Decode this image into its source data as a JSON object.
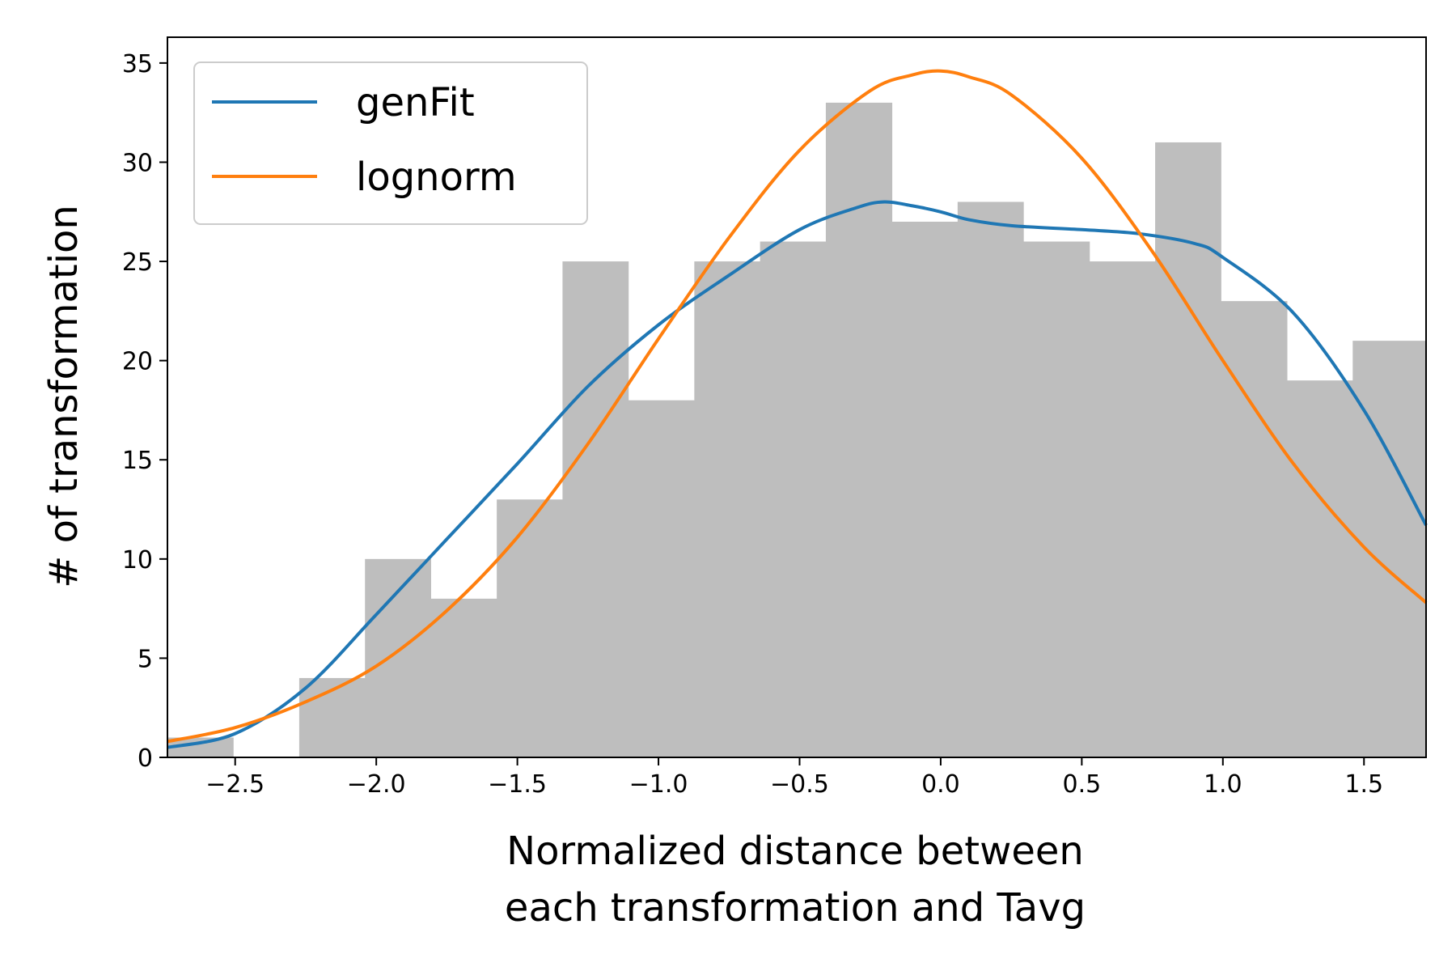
{
  "chart_data": {
    "type": "bar",
    "subtype": "histogram-with-fitted-curves",
    "xlabel": [
      "Normalized distance between",
      "each transformation and Tavg"
    ],
    "ylabel": "# of transformation",
    "xlim": [
      -2.74,
      1.72
    ],
    "ylim": [
      0,
      36.3
    ],
    "xticks": [
      -2.5,
      -2.0,
      -1.5,
      -1.0,
      -0.5,
      0.0,
      0.5,
      1.0,
      1.5
    ],
    "xtick_labels": [
      "−2.5",
      "−2.0",
      "−1.5",
      "−1.0",
      "−0.5",
      "0.0",
      "0.5",
      "1.0",
      "1.5"
    ],
    "yticks": [
      0,
      5,
      10,
      15,
      20,
      25,
      30,
      35
    ],
    "ytick_labels": [
      "0",
      "5",
      "10",
      "15",
      "20",
      "25",
      "30",
      "35"
    ],
    "legend_position": "top-left",
    "histogram": {
      "color": "#bebebe",
      "bin_edges": [
        -2.74,
        -2.507,
        -2.273,
        -2.04,
        -1.807,
        -1.573,
        -1.34,
        -1.107,
        -0.873,
        -0.64,
        -0.407,
        -0.173,
        0.06,
        0.293,
        0.527,
        0.76,
        0.993,
        1.227,
        1.46,
        1.72
      ],
      "counts": [
        1,
        0,
        4,
        10,
        8,
        13,
        25,
        18,
        25,
        26,
        33,
        27,
        28,
        26,
        25,
        31,
        23,
        19,
        21
      ]
    },
    "series": [
      {
        "name": "genFit",
        "color": "#1f77b4",
        "x": [
          -2.74,
          -2.5,
          -2.25,
          -2.0,
          -1.75,
          -1.5,
          -1.25,
          -1.0,
          -0.75,
          -0.5,
          -0.3,
          -0.2,
          -0.1,
          0.0,
          0.1,
          0.25,
          0.5,
          0.7,
          0.9,
          1.0,
          1.25,
          1.5,
          1.72
        ],
        "y": [
          0.5,
          1.2,
          3.5,
          7.2,
          11.0,
          14.8,
          18.7,
          21.8,
          24.3,
          26.6,
          27.7,
          28.0,
          27.8,
          27.5,
          27.1,
          26.8,
          26.6,
          26.4,
          25.9,
          25.2,
          22.4,
          17.5,
          11.7
        ]
      },
      {
        "name": "lognorm",
        "color": "#ff7f0e",
        "x": [
          -2.74,
          -2.5,
          -2.25,
          -2.0,
          -1.75,
          -1.5,
          -1.25,
          -1.0,
          -0.75,
          -0.5,
          -0.25,
          -0.1,
          0.0,
          0.1,
          0.25,
          0.5,
          0.75,
          1.0,
          1.25,
          1.5,
          1.72
        ],
        "y": [
          0.8,
          1.5,
          2.8,
          4.6,
          7.4,
          11.1,
          15.8,
          21.1,
          26.2,
          30.6,
          33.6,
          34.4,
          34.6,
          34.3,
          33.4,
          30.2,
          25.5,
          20.0,
          14.8,
          10.6,
          7.8
        ]
      }
    ]
  }
}
